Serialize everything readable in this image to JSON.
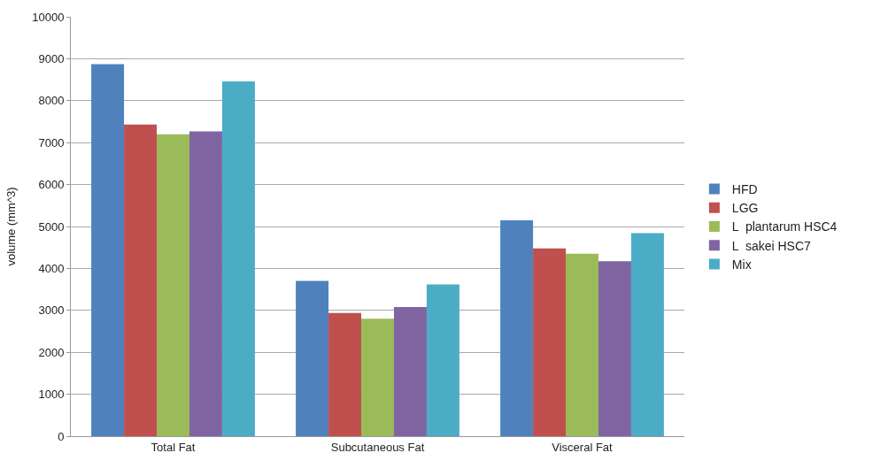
{
  "chart_data": {
    "type": "bar",
    "ylabel": "volume (mm^3)",
    "categories": [
      "Total Fat",
      "Subcutaneous Fat",
      "Visceral Fat"
    ],
    "series": [
      {
        "name": "HFD",
        "color": "#4f81bd",
        "values": [
          8870,
          3700,
          5150
        ]
      },
      {
        "name": "LGG",
        "color": "#c0504d",
        "values": [
          7430,
          2940,
          4480
        ]
      },
      {
        "name": "L  plantarum HSC4",
        "color": "#9bbb59",
        "values": [
          7200,
          2800,
          4350
        ]
      },
      {
        "name": "L  sakei HSC7",
        "color": "#8064a2",
        "values": [
          7270,
          3080,
          4170
        ]
      },
      {
        "name": "Mix",
        "color": "#4bacc6",
        "values": [
          8460,
          3620,
          4840
        ]
      }
    ],
    "ylim": [
      0,
      10000
    ],
    "yticks": [
      0,
      1000,
      2000,
      3000,
      4000,
      5000,
      6000,
      7000,
      8000,
      9000,
      10000
    ],
    "grid": "y",
    "legend": "right"
  }
}
